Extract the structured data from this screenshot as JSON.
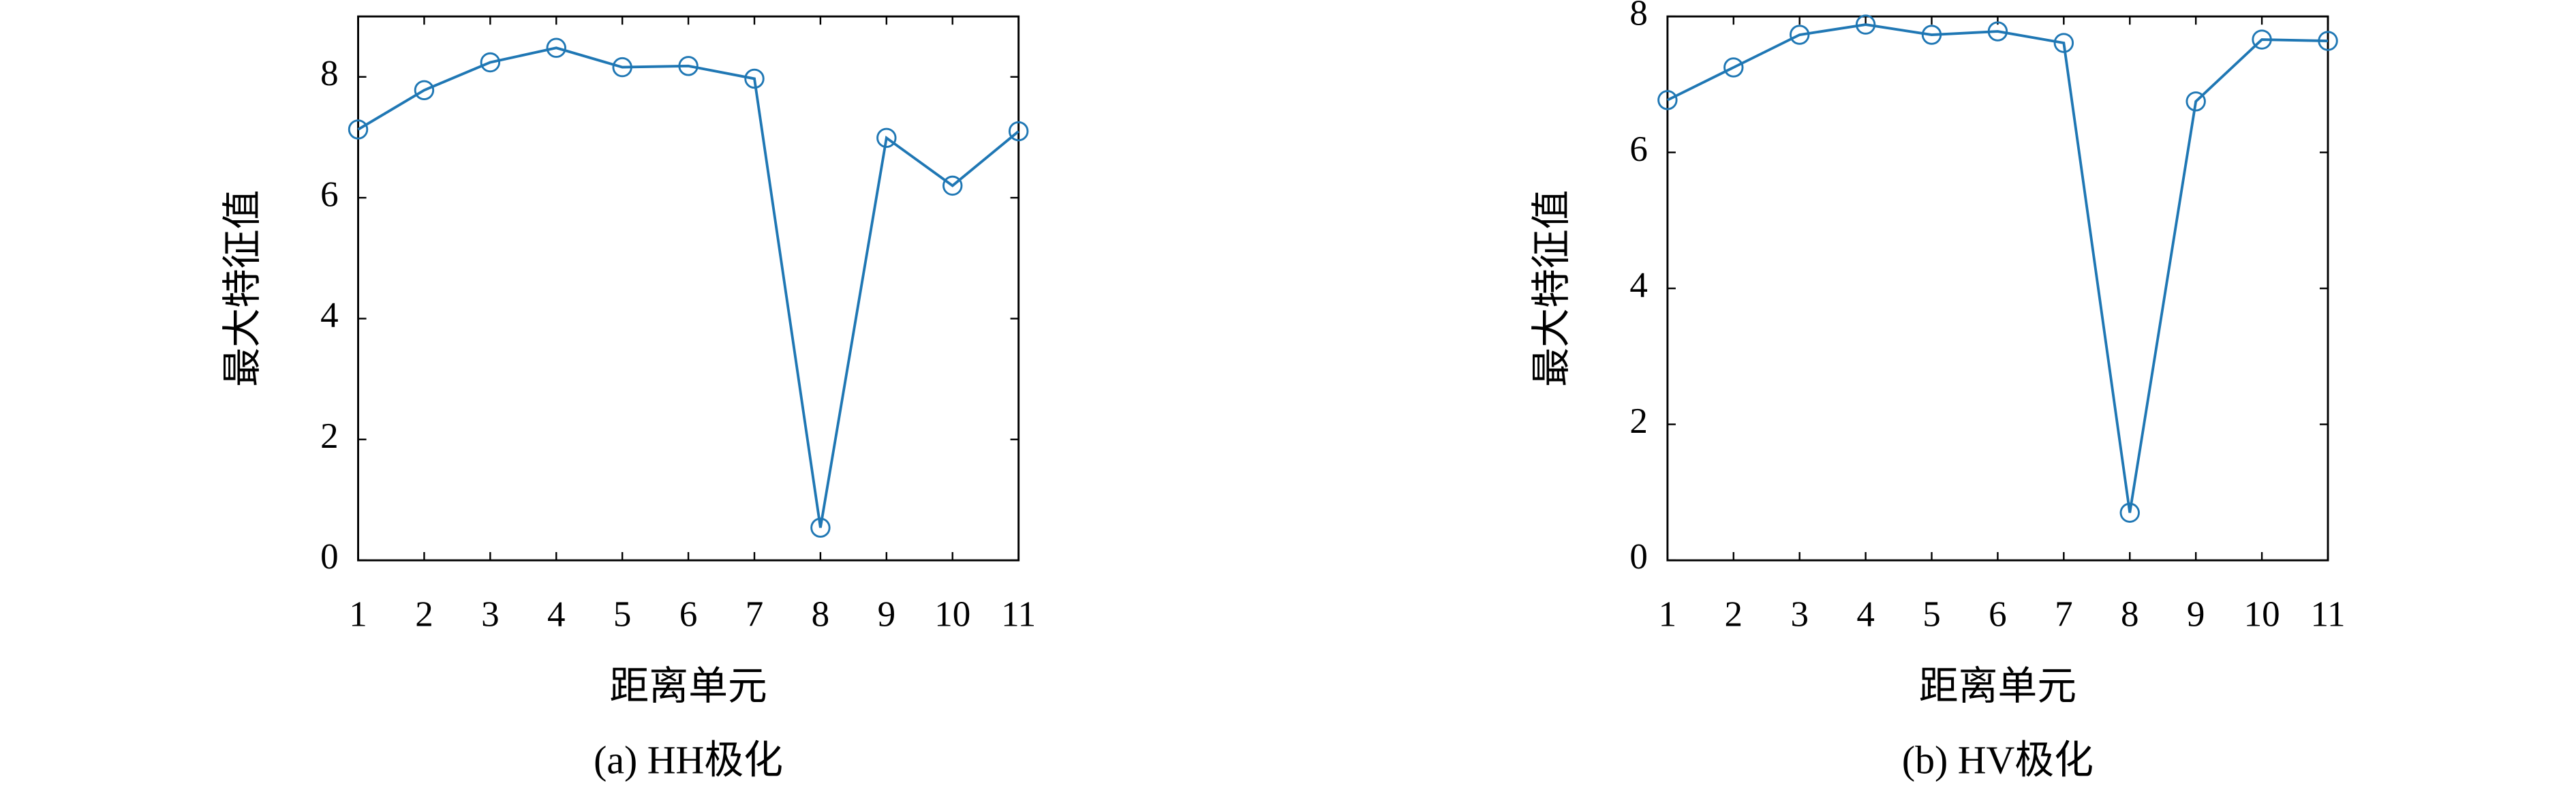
{
  "chart_data": [
    {
      "type": "line",
      "caption": "(a) HH极化",
      "xlabel": "距离单元",
      "ylabel": "最大特征值",
      "x": [
        1,
        2,
        3,
        4,
        5,
        6,
        7,
        8,
        9,
        10,
        11
      ],
      "series": [
        {
          "color": "#1f77b4",
          "values": [
            7.13,
            7.78,
            8.24,
            8.48,
            8.16,
            8.18,
            7.97,
            0.54,
            6.99,
            6.2,
            7.1
          ]
        }
      ],
      "xlim": [
        1,
        11
      ],
      "xticks": [
        1,
        2,
        3,
        4,
        5,
        6,
        7,
        8,
        9,
        10,
        11
      ],
      "ylim": [
        0,
        9
      ],
      "yticks": [
        0,
        2,
        4,
        6,
        8
      ],
      "marker": "hollow-circle"
    },
    {
      "type": "line",
      "caption": "(b) HV极化",
      "xlabel": "距离单元",
      "ylabel": "最大特征值",
      "x": [
        1,
        2,
        3,
        4,
        5,
        6,
        7,
        8,
        9,
        10,
        11
      ],
      "series": [
        {
          "color": "#1f77b4",
          "values": [
            6.77,
            7.25,
            7.73,
            7.88,
            7.73,
            7.78,
            7.61,
            0.7,
            6.75,
            7.66,
            7.64
          ]
        }
      ],
      "xlim": [
        1,
        11
      ],
      "xticks": [
        1,
        2,
        3,
        4,
        5,
        6,
        7,
        8,
        9,
        10,
        11
      ],
      "ylim": [
        0,
        8
      ],
      "yticks": [
        0,
        2,
        4,
        6,
        8
      ],
      "marker": "hollow-circle"
    }
  ]
}
